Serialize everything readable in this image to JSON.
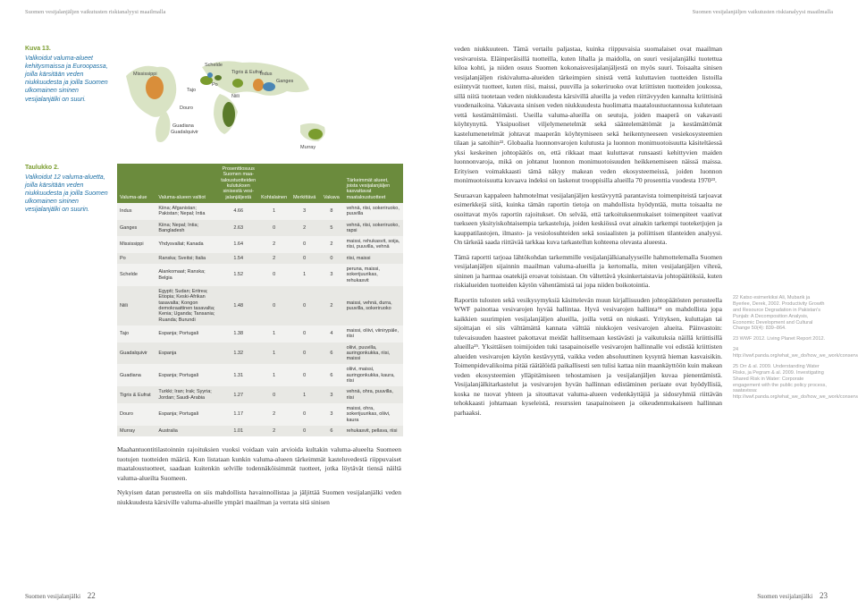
{
  "runningHead": "Suomen vesijalanjäljen vaikutusten riskianalyysi maailmalla",
  "footer": {
    "label": "Suomen vesijalanjälki",
    "leftNum": "22",
    "rightNum": "23"
  },
  "figure": {
    "ref": "Kuva 13.",
    "caption": "Valikoidut valuma-alueet kehitysmaissa ja Euroopassa, joilla kärsitään veden niukkuudesta ja joilla Suomen ulkomainen sininen vesijalanjälki on suuri.",
    "labels": {
      "mississippi": "Mississippi",
      "tajo": "Tajo",
      "guadalquivir": "Guadalquivir",
      "guadiana": "Guadiana",
      "douro": "Douro",
      "po": "Po",
      "schelde": "Schelde",
      "nile": "Niili",
      "tigris": "Tigris & Eufrat",
      "indus": "Indus",
      "ganges": "Ganges",
      "murray": "Murray"
    },
    "colors": {
      "land": "#d9e3c4",
      "region_green": "#7a9c2e",
      "region_orange": "#d98e3a",
      "region_blue": "#4a86b5",
      "region_darkgreen": "#5a7a2a",
      "sea": "#ffffff"
    }
  },
  "table": {
    "ref": "Taulukko 2.",
    "caption": "Valikoidut 12 valuma-aluetta, joilla kärsitään veden niukkuudesta ja joilla Suomen ulkomainen sininen vesijalanjälki on suurin.",
    "headers": {
      "area": "Valuma-alue",
      "states": "Valuma-alueen valtiot",
      "pct": "Prosenttiosuus Suomen maa-taloustuotteiden kulutuksen sinisestä vesi-jalanjäljestä",
      "scarcity_k": "Kohtalainen",
      "scarcity_m": "Merkittävä",
      "scarcity_v": "Vakava",
      "scarcity_group": "Kuukaudet, jona valuma-alue kärsii kohtalaisesta, merkittävästä tai vakavasta vesiniukkuudesta",
      "products": "Tärkeimmät alueet, joista vesijalanjäljen kasvattavat maataloustuotteet"
    },
    "rows": [
      {
        "area": "Indus",
        "states": "Kiina; Afganistan; Pakistan; Nepal; Intia",
        "pct": "4.66",
        "k": "1",
        "m": "3",
        "v": "8",
        "prod": "vehnä, riisi, sokeriruoko, puuvilla"
      },
      {
        "area": "Ganges",
        "states": "Kiina; Nepal; Intia; Bangladesh",
        "pct": "2.63",
        "k": "0",
        "m": "2",
        "v": "5",
        "prod": "vehnä, riisi, sokeriruoko, rapsi"
      },
      {
        "area": "Mississippi",
        "states": "Yhdysvallat; Kanada",
        "pct": "1.64",
        "k": "2",
        "m": "0",
        "v": "2",
        "prod": "maissi, rehukasvit, soija, riisi, puuvilla, vehnä"
      },
      {
        "area": "Po",
        "states": "Ranska; Sveitsi; Italia",
        "pct": "1.54",
        "k": "2",
        "m": "0",
        "v": "0",
        "prod": "riisi, maissi"
      },
      {
        "area": "Schelde",
        "states": "Alankomaat; Ranska; Belgia",
        "pct": "1.52",
        "k": "0",
        "m": "1",
        "v": "3",
        "prod": "peruna, maissi, sokerijuurikas, rehukasvit"
      },
      {
        "area": "Niili",
        "states": "Egypti; Sudan; Eritrea; Etiopia; Keski-Afrikan tasavalta; Kongon demokraattinen tasavalta; Kenia; Uganda; Tansania; Ruanda; Burundi",
        "pct": "1.48",
        "k": "0",
        "m": "0",
        "v": "2",
        "prod": "maissi, vehnä, durra, puuvilla, sokeriruoko"
      },
      {
        "area": "Tajo",
        "states": "Espanja; Portugali",
        "pct": "1.38",
        "k": "1",
        "m": "0",
        "v": "4",
        "prod": "maissi, oliivi, viinirypäle, riisi"
      },
      {
        "area": "Guadalquivir",
        "states": "Espanja",
        "pct": "1.32",
        "k": "1",
        "m": "0",
        "v": "6",
        "prod": "oliivi, puuvilla, auringonkukka, riisi, maissi"
      },
      {
        "area": "Guadiana",
        "states": "Espanja; Portugali",
        "pct": "1.31",
        "k": "1",
        "m": "0",
        "v": "6",
        "prod": "oliivi, maissi, auringonkukka, kaura, riisi"
      },
      {
        "area": "Tigris & Eufrat",
        "states": "Turkki; Iran; Irak; Syyria; Jordan; Saudi-Arabia",
        "pct": "1.27",
        "k": "0",
        "m": "1",
        "v": "3",
        "prod": "vehnä, ohra, puuvilla, riisi"
      },
      {
        "area": "Douro",
        "states": "Espanja; Portugali",
        "pct": "1.17",
        "k": "2",
        "m": "0",
        "v": "3",
        "prod": "maissi, ohra, sokerijuurikas, oliivi, kaura"
      },
      {
        "area": "Murray",
        "states": "Australia",
        "pct": "1.01",
        "k": "2",
        "m": "0",
        "v": "6",
        "prod": "rehukasvit, pellava, riisi"
      }
    ],
    "header_bg": "#6b8b3d",
    "header_color": "#ffffff",
    "row_even_bg": "#f2f2f0",
    "row_odd_bg": "#e8e8e4"
  },
  "leftBody": {
    "p1": "Maahantuontitilastoinnin rajoituksien vuoksi voidaan vain arvioida kultakin valuma-alueelta Suomeen tuotujen tuotteiden määriä. Kun listataan kunkin valuma-alueen tärkeimmät kasteluvedestä riippuvaiset maataloustuotteet, saadaan kuitenkin selville todennäköisimmät tuotteet, jotka löytävät tiensä näiltä valuma-alueilta Suomeen.",
    "p2": "Nykyisen datan perusteella on siis mahdollista havainnollistaa ja jäljittää Suomen vesijalanjälki veden niukkuudesta kärsiville valuma-alueille ympäri maailman ja verrata sitä sinisen"
  },
  "rightBody": {
    "p1": "veden niukkuuteen. Tämä vertailu paljastaa, kuinka riippuvaisia suomalaiset ovat maailman vesivaroista. Eläinperäisillä tuotteilla, kuten lihalla ja maidolla, on suuri vesijalanjälki tuotettua kiloa kohti, ja niiden osuus Suomen kokonaisvesijalanjäljestä on myös suuri. Toisaalta sinisen vesijalanjäljen riskivaluma-alueiden tärkeimpien sinistä vettä kuluttavien tuotteiden listoilla esiintyvät tuotteet, kuten riisi, maissi, puuvilla ja sokeriruoko ovat kriittisten tuotteiden joukossa, sillä niitä tuotetaan veden niukkuudesta kärsivillä alueilla ja veden riittävyyden kannalta kriittisinä vuodenaikoina. Vakavasta sinisen veden niukkuudesta huolimatta maataloustuotannossa kulutetaan vettä kestämättömästi. Useilla valuma-alueilla on seutuja, joiden maaperä on vakavasti köyhtynyttä. Yksipuoliset viljelymenetelmät sekä sääntelemättömät ja kestämättömät kastelumenetelmät johtavat maaperän köyhtymiseen sekä heikentyneeseen vesiekosysteemien tilaan ja satoihin²². Globaalia luonnonvarojen kulutusta ja luonnon monimuotoisuutta käsiteltäessä yksi keskeinen johtopäätös on, että rikkaat maat kuluttavat runsaasti kehittyvien maiden luonnonvaroja, mikä on johtanut luonnon monimuotoisuuden heikkenemiseen näissä maissa. Erityisen voimakkaasti tämä näkyy makean veden ekosysteemeissä, joiden luonnon monimuotoisuutta kuvaava indeksi on laskenut trooppisilla alueilla 70 prosenttia vuodesta 1970²³.",
    "p2": "Seuraavan kappaleen hahmotelmat vesijalanjäljen kestävyyttä parantavista toimenpiteistä tarjoavat esimerkkejä siitä, kuinka tämän raportin tietoja on mahdollista hyödyntää, mutta toisaalta ne osoittavat myös raportin rajoitukset. On selvää, että tarkoituksenmukaiset toimenpiteet vaativat tuekseen yksityiskohtaisempia tarkasteluja, joiden keskiössä ovat ainakin tarkempi tuoteketjujen ja kauppatilastojen, ilmasto- ja vesiolosuhteiden sekä sosiaalisten ja poliittisen tilanteiden analyysi. On tärkeää saada riittävää tarkkaa kuva tarkastellun kohteena olevasta alueesta.",
    "p3": "Tämä raportti tarjoaa lähtökohdan tarkemmille vesijalanjälkianalyyseille hahmottelemalla Suomen vesijalanjäljen sijainnin maailman valuma-alueilla ja kertomalla, miten vesijalanjäljen vihreä, sininen ja harmaa osatekijä eroavat toisistaan. On vältettävä yksinkertaistavia johtopäätöksiä, kuten riskialueiden tuotteiden käytön vähentämistä tai jopa niiden boikotointia.",
    "p4": "Raportin tulosten sekä vesikysymyksiä käsittelevän muun kirjallisuuden johtopäätösten perusteella WWF painottaa vesivarojen hyvää hallintaa. Hyvä vesivarojen hallinta²⁴ on mahdollista jopa kaikkien suurimpien vesijalanjäljen alueilla, joilla vettä on niukasti. Yrityksen, kuluttajan tai sijoittajan ei siis välttämättä kannata välttää niukkojen vesivarojen alueita. Päinvastoin: tulevaisuuden haasteet pakottavat meidät hallitsemaan kestävästi ja vaikutuksia näillä kriittisillä alueilla²⁵. Yksittäisen toimijoiden tuki tasapainoiselle vesivarojen hallinnalle voi edistää kriittisten alueiden vesivarojen käytön kestävyyttä, vaikka veden absoluuttinen kysyntä hieman kasvaisikin. Toimenpidevalikoima pitää räätälöidä paikallisesti sen tulisi kattaa niin maankäyttöön kuin makean veden ekosysteemien ylläpitämiseen tehostamisen ja vesijalanjäljen kuvaa pienentämistä. Vesijalanjälkitarkastelut ja vesivarojen hyvän hallinnan edistäminen periaate ovat hyödyllisiä, koska ne tuovat yhteen ja sitouttavat valuma-alueen vedenkäyttäjiä ja sidosryhmiä riittävän tehokkaasti johtamaan kyseleistä, resurssien tasapainoiseen ja oikeudenmukaiseen hallinnan parhaaksi."
  },
  "footnotes": {
    "n22": "22 Katso esimerkiksi Ali, Mubarik ja Byerlee, Derek, 2002. Productivity Growth and Resource Degradation in Pakistan's Punjab: A Decomposition Analysis, Economic Development and Cultural Change 50(4): 839–864.",
    "n23": "23 WWF 2012. Living Planet Report 2012.",
    "n24": "24 http://wwf.panda.org/what_we_do/how_we_work/conservation/",
    "n25": "25 Orr & al. 2009. Understanding Water Risks, ja Pegram & al. 2009. Investigating Shared Risk in Water: Corporate engagement with the public policy process, saatavissa: http://wwf.panda.org/what_we_do/how_we_work/conservation/freshwater/water_management/."
  }
}
